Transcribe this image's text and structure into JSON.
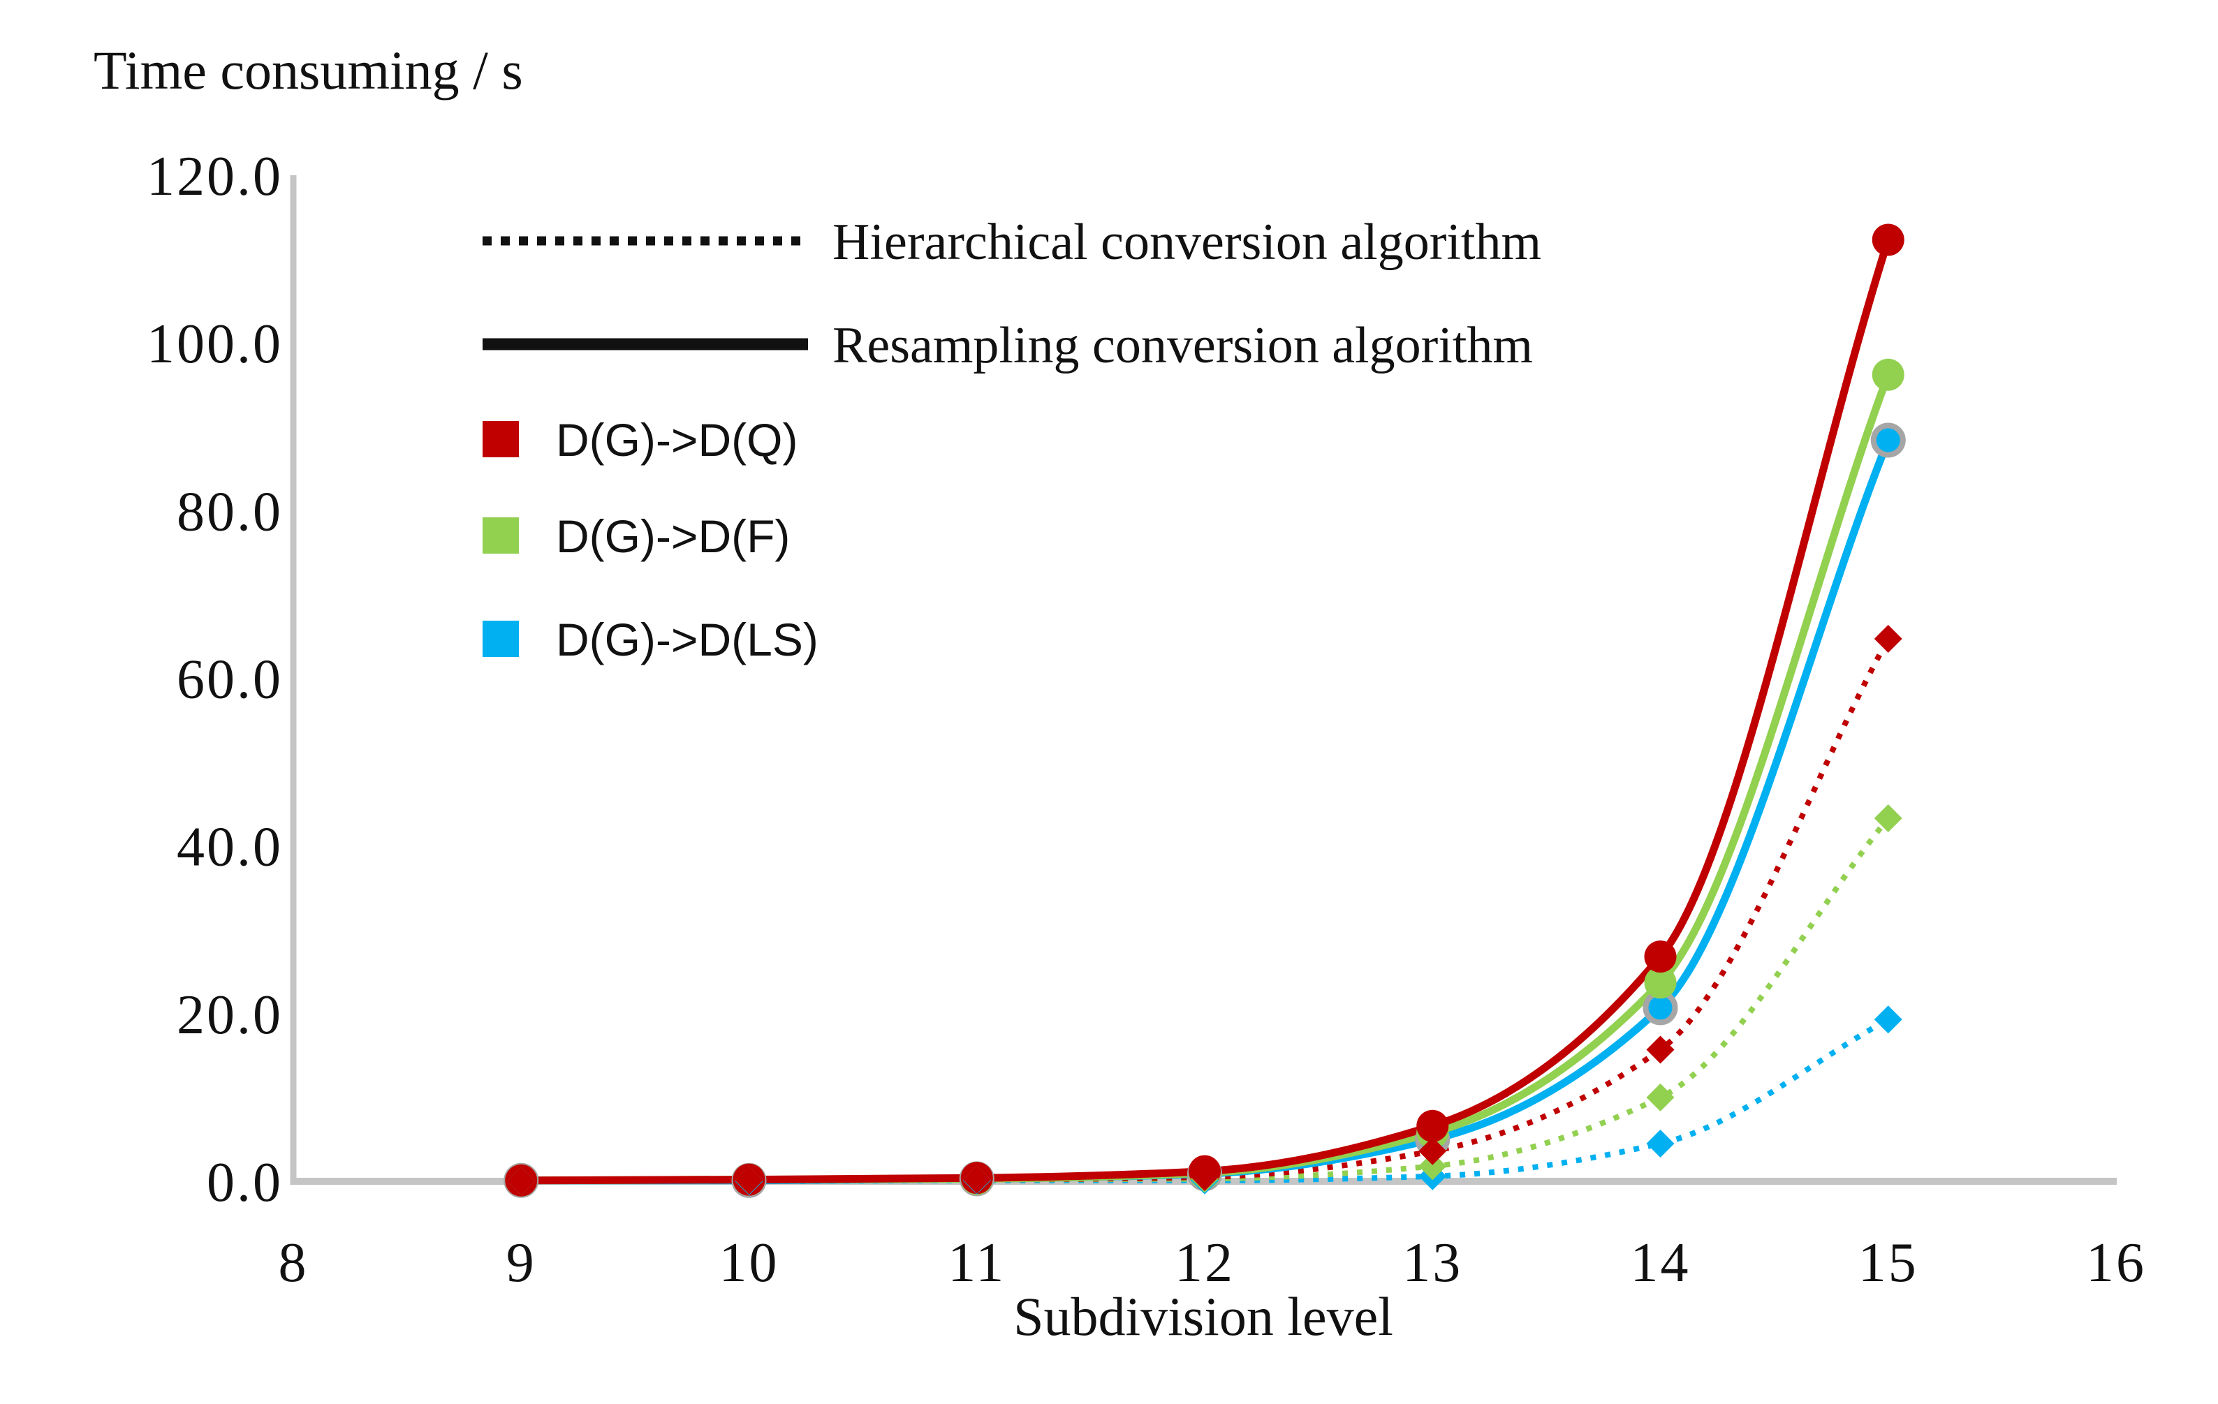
{
  "chart_data": {
    "type": "line",
    "title": "Time consuming / s",
    "xlabel": "Subdivision level",
    "xlim": [
      8,
      16
    ],
    "ylim": [
      0,
      120
    ],
    "grid": false,
    "legend_position": "top-left-inside",
    "x": [
      9,
      10,
      11,
      12,
      13,
      14,
      15
    ],
    "xticks": [
      {
        "value": 8,
        "label": "8"
      },
      {
        "value": 9,
        "label": "9"
      },
      {
        "value": 10,
        "label": "10"
      },
      {
        "value": 11,
        "label": "11"
      },
      {
        "value": 12,
        "label": "12"
      },
      {
        "value": 13,
        "label": "13"
      },
      {
        "value": 14,
        "label": "14"
      },
      {
        "value": 15,
        "label": "15"
      },
      {
        "value": 16,
        "label": "16"
      }
    ],
    "yticks": [
      {
        "value": 0,
        "label": "0.0"
      },
      {
        "value": 20,
        "label": "20.0"
      },
      {
        "value": 40,
        "label": "40.0"
      },
      {
        "value": 60,
        "label": "60.0"
      },
      {
        "value": 80,
        "label": "80.0"
      },
      {
        "value": 100,
        "label": "100.0"
      },
      {
        "value": 120,
        "label": "120.0"
      }
    ],
    "legend": {
      "line_styles": [
        {
          "style": "dotted",
          "label": "Hierarchical conversion algorithm"
        },
        {
          "style": "solid",
          "label": "Resampling conversion algorithm"
        }
      ],
      "color_items": [
        {
          "color": "#C00000",
          "label": "D(G)->D(Q)"
        },
        {
          "color": "#92D050",
          "label": "D(G)->D(F)"
        },
        {
          "color": "#00B0F0",
          "label": "D(G)->D(LS)"
        }
      ]
    },
    "series": [
      {
        "name": "resampling-dgq",
        "algorithm": "Resampling conversion algorithm",
        "pair": "D(G)->D(Q)",
        "color": "#C00000",
        "line": "solid",
        "marker": "circle",
        "values": [
          0.1,
          0.2,
          0.4,
          1.2,
          6.6,
          26.8,
          112.3
        ]
      },
      {
        "name": "resampling-dgf",
        "algorithm": "Resampling conversion algorithm",
        "pair": "D(G)->D(F)",
        "color": "#92D050",
        "line": "solid",
        "marker": "circle",
        "values": [
          0.1,
          0.2,
          0.3,
          1.0,
          5.8,
          23.7,
          96.2
        ]
      },
      {
        "name": "resampling-dgls",
        "algorithm": "Resampling conversion algorithm",
        "pair": "D(G)->D(LS)",
        "color": "#00B0F0",
        "line": "solid",
        "marker": "circle",
        "marker_outline": "#A6A6A6",
        "values": [
          0.1,
          0.1,
          0.3,
          0.9,
          5.0,
          20.7,
          88.4
        ]
      },
      {
        "name": "hierarchical-dgq",
        "algorithm": "Hierarchical conversion algorithm",
        "pair": "D(G)->D(Q)",
        "color": "#C00000",
        "line": "dotted",
        "marker": "diamond",
        "values": [
          0.0,
          0.1,
          0.2,
          0.5,
          3.6,
          15.7,
          64.7
        ]
      },
      {
        "name": "hierarchical-dgf",
        "algorithm": "Hierarchical conversion algorithm",
        "pair": "D(G)->D(F)",
        "color": "#92D050",
        "line": "dotted",
        "marker": "diamond",
        "values": [
          0.0,
          0.1,
          0.2,
          0.3,
          1.8,
          10.0,
          43.3
        ]
      },
      {
        "name": "hierarchical-dgls",
        "algorithm": "Hierarchical conversion algorithm",
        "pair": "D(G)->D(LS)",
        "color": "#00B0F0",
        "line": "dotted",
        "marker": "diamond",
        "values": [
          0.0,
          0.0,
          0.1,
          0.1,
          0.6,
          4.5,
          19.3
        ]
      }
    ],
    "axis_color": "#C5C5C5"
  }
}
